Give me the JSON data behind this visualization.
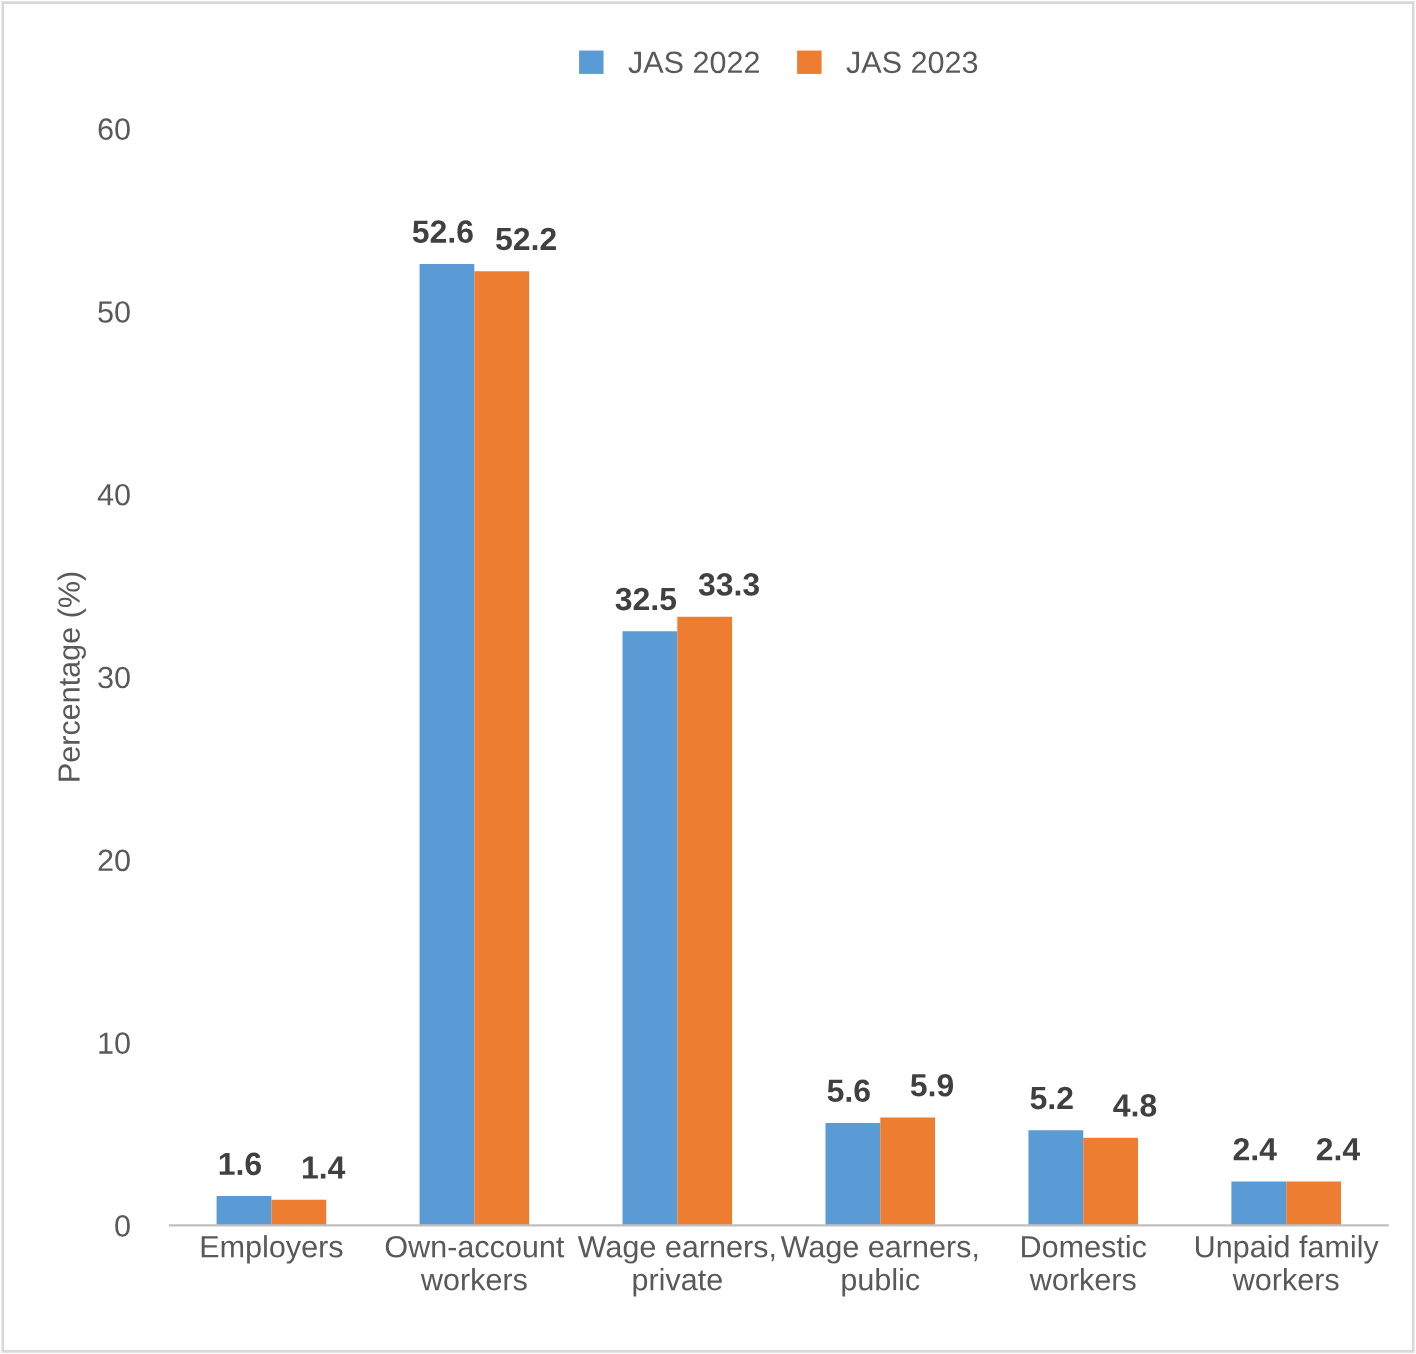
{
  "chart_data": {
    "type": "bar",
    "ylabel": "Percentage (%)",
    "categories": [
      "Employers",
      "Own-account\nworkers",
      "Wage earners,\nprivate",
      "Wage earners,\npublic",
      "Domestic\nworkers",
      "Unpaid family\nworkers"
    ],
    "series": [
      {
        "name": "JAS 2022",
        "color": "#5b9bd5",
        "values": [
          1.6,
          52.6,
          32.5,
          5.6,
          5.2,
          2.4
        ]
      },
      {
        "name": "JAS 2023",
        "color": "#ed7d31",
        "values": [
          1.4,
          52.2,
          33.3,
          5.9,
          4.8,
          2.4
        ]
      }
    ],
    "ylim": [
      0,
      60
    ],
    "yticks": [
      0,
      10,
      20,
      30,
      40,
      50,
      60
    ],
    "grid": false,
    "legend": "top",
    "data_labels": true
  }
}
